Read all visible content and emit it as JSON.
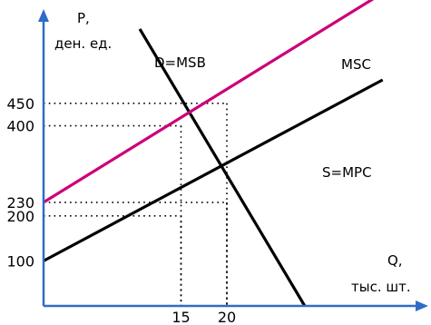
{
  "chart_data": {
    "type": "line",
    "title": "",
    "ylabel_line1": "P,",
    "ylabel_line2": "ден. ед.",
    "xlabel_line1": "Q,",
    "xlabel_line2": "тыс. шт.",
    "xlim": [
      0,
      30
    ],
    "ylim": [
      0,
      620
    ],
    "y_ticks": [
      {
        "label": "100",
        "value": 100
      },
      {
        "label": "200",
        "value": 200
      },
      {
        "label": "230",
        "value": 230
      },
      {
        "label": "400",
        "value": 400
      },
      {
        "label": "450",
        "value": 450
      }
    ],
    "x_ticks": [
      {
        "label": "15",
        "value": 15
      },
      {
        "label": "20",
        "value": 20
      }
    ],
    "series": [
      {
        "name": "D=MSB",
        "color": "#000000",
        "points": [
          [
            10.5,
            615
          ],
          [
            28.5,
            0
          ]
        ]
      },
      {
        "name": "MSC",
        "color": "#cc0077",
        "points": [
          [
            0,
            230
          ],
          [
            37,
            695
          ]
        ]
      },
      {
        "name": "S=MPC",
        "color": "#000000",
        "points": [
          [
            0,
            100
          ],
          [
            37,
            502
          ]
        ]
      }
    ],
    "guides": [
      {
        "x": 15,
        "y": 400
      },
      {
        "x": 20,
        "y": 230
      },
      {
        "x": 20,
        "y": 450
      },
      {
        "x": 15,
        "y": 200
      }
    ],
    "grid": false,
    "legend": "none"
  }
}
